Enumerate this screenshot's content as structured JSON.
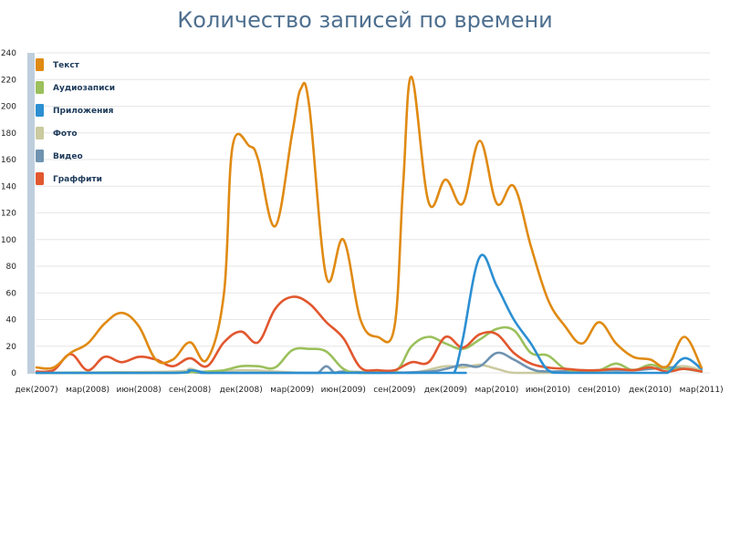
{
  "chart_data": {
    "type": "line",
    "title": "Количество записей по времени",
    "xlabel": "",
    "ylabel": "",
    "ylim": [
      0,
      240
    ],
    "y_ticks": [
      0,
      20,
      40,
      60,
      80,
      100,
      120,
      140,
      160,
      180,
      200,
      220,
      240
    ],
    "grid": true,
    "legend_position": "top-left",
    "x_tick_labels": [
      "дек(2007)",
      "мар(2008)",
      "июн(2008)",
      "сен(2008)",
      "дек(2008)",
      "мар(2009)",
      "июн(2009)",
      "сен(2009)",
      "дек(2009)",
      "мар(2010)",
      "июн(2010)",
      "сен(2010)",
      "дек(2010)",
      "мар(2011)"
    ],
    "x_tick_positions": [
      0,
      3,
      6,
      9,
      12,
      15,
      18,
      21,
      24,
      27,
      30,
      33,
      36,
      39
    ],
    "x_range": [
      0,
      39.5
    ],
    "series": [
      {
        "name": "Текст",
        "color": "#e08a12",
        "points": [
          [
            0,
            4
          ],
          [
            1,
            4
          ],
          [
            2,
            15
          ],
          [
            3,
            22
          ],
          [
            4,
            37
          ],
          [
            5,
            45
          ],
          [
            6,
            35
          ],
          [
            7,
            10
          ],
          [
            8,
            10
          ],
          [
            9,
            23
          ],
          [
            10,
            10
          ],
          [
            11,
            60
          ],
          [
            11.5,
            170
          ],
          [
            12.5,
            170
          ],
          [
            13,
            160
          ],
          [
            14,
            110
          ],
          [
            15,
            180
          ],
          [
            15.5,
            213
          ],
          [
            16,
            200
          ],
          [
            17,
            72
          ],
          [
            18,
            100
          ],
          [
            19,
            40
          ],
          [
            20,
            27
          ],
          [
            21,
            35
          ],
          [
            21.5,
            140
          ],
          [
            22,
            222
          ],
          [
            23,
            128
          ],
          [
            24,
            145
          ],
          [
            25,
            127
          ],
          [
            26,
            174
          ],
          [
            27,
            127
          ],
          [
            28,
            140
          ],
          [
            29,
            95
          ],
          [
            30,
            55
          ],
          [
            31,
            35
          ],
          [
            32,
            22
          ],
          [
            33,
            38
          ],
          [
            34,
            22
          ],
          [
            35,
            12
          ],
          [
            36,
            10
          ],
          [
            37,
            5
          ],
          [
            38,
            27
          ],
          [
            39,
            4
          ]
        ]
      },
      {
        "name": "Аудиозаписи",
        "color": "#9bc05c",
        "points": [
          [
            0,
            0
          ],
          [
            2,
            0
          ],
          [
            4,
            0
          ],
          [
            6,
            0
          ],
          [
            8,
            0
          ],
          [
            10,
            1
          ],
          [
            11,
            2
          ],
          [
            12,
            5
          ],
          [
            13,
            5
          ],
          [
            14,
            4
          ],
          [
            15,
            17
          ],
          [
            16,
            18
          ],
          [
            17,
            16
          ],
          [
            18,
            3
          ],
          [
            19,
            0
          ],
          [
            21,
            1
          ],
          [
            22,
            20
          ],
          [
            23,
            27
          ],
          [
            24,
            22
          ],
          [
            25,
            18
          ],
          [
            26,
            25
          ],
          [
            27,
            33
          ],
          [
            28,
            32
          ],
          [
            29,
            15
          ],
          [
            30,
            13
          ],
          [
            31,
            3
          ],
          [
            32,
            2
          ],
          [
            33,
            2
          ],
          [
            34,
            7
          ],
          [
            35,
            2
          ],
          [
            36,
            6
          ],
          [
            37,
            3
          ],
          [
            38,
            3
          ],
          [
            39,
            1
          ]
        ]
      },
      {
        "name": "Приложения",
        "color": "#2c8fd2",
        "points": [
          [
            0,
            0
          ],
          [
            8,
            0
          ],
          [
            9,
            2
          ],
          [
            10,
            0
          ],
          [
            11,
            0
          ],
          [
            24,
            0
          ],
          [
            24.5,
            0
          ],
          [
            25,
            25
          ],
          [
            26,
            87
          ],
          [
            27,
            65
          ],
          [
            28,
            40
          ],
          [
            29,
            22
          ],
          [
            30,
            2
          ],
          [
            31,
            0
          ],
          [
            36,
            0
          ],
          [
            37,
            0
          ],
          [
            38,
            11
          ],
          [
            39,
            3
          ]
        ]
      },
      {
        "name": "Фото",
        "color": "#cbcaa0",
        "points": [
          [
            0,
            0
          ],
          [
            8,
            1
          ],
          [
            9,
            3
          ],
          [
            10,
            0
          ],
          [
            12,
            2
          ],
          [
            14,
            1
          ],
          [
            16,
            0
          ],
          [
            20,
            1
          ],
          [
            22,
            0
          ],
          [
            24,
            5
          ],
          [
            25,
            4
          ],
          [
            26,
            6
          ],
          [
            27,
            3
          ],
          [
            28,
            0
          ],
          [
            30,
            0
          ],
          [
            33,
            1
          ],
          [
            36,
            3
          ],
          [
            37,
            4
          ],
          [
            38,
            5
          ],
          [
            39,
            2
          ]
        ]
      },
      {
        "name": "Видео",
        "color": "#6f93b0",
        "points": [
          [
            0,
            0
          ],
          [
            8,
            0
          ],
          [
            9,
            1
          ],
          [
            10,
            0
          ],
          [
            16,
            0
          ],
          [
            16.5,
            0
          ],
          [
            17,
            5
          ],
          [
            17.5,
            0
          ],
          [
            18,
            1
          ],
          [
            20,
            0
          ],
          [
            23,
            1
          ],
          [
            24,
            3
          ],
          [
            25,
            6
          ],
          [
            26,
            5
          ],
          [
            27,
            15
          ],
          [
            28,
            10
          ],
          [
            29,
            3
          ],
          [
            30,
            1
          ],
          [
            33,
            2
          ],
          [
            35,
            2
          ],
          [
            36,
            3
          ],
          [
            37,
            4
          ],
          [
            38,
            3
          ],
          [
            39,
            1
          ]
        ]
      },
      {
        "name": "Граффити",
        "color": "#e2572e",
        "points": [
          [
            0,
            1
          ],
          [
            1,
            2
          ],
          [
            2,
            14
          ],
          [
            3,
            2
          ],
          [
            4,
            12
          ],
          [
            5,
            8
          ],
          [
            6,
            12
          ],
          [
            7,
            10
          ],
          [
            8,
            5
          ],
          [
            9,
            11
          ],
          [
            10,
            5
          ],
          [
            11,
            23
          ],
          [
            12,
            31
          ],
          [
            13,
            23
          ],
          [
            14,
            48
          ],
          [
            15,
            57
          ],
          [
            16,
            52
          ],
          [
            17,
            38
          ],
          [
            18,
            26
          ],
          [
            19,
            4
          ],
          [
            20,
            2
          ],
          [
            21,
            2
          ],
          [
            22,
            8
          ],
          [
            23,
            8
          ],
          [
            24,
            27
          ],
          [
            25,
            19
          ],
          [
            26,
            29
          ],
          [
            27,
            29
          ],
          [
            28,
            15
          ],
          [
            29,
            7
          ],
          [
            30,
            4
          ],
          [
            31,
            3
          ],
          [
            32,
            2
          ],
          [
            33,
            2
          ],
          [
            34,
            3
          ],
          [
            35,
            2
          ],
          [
            36,
            4
          ],
          [
            37,
            1
          ],
          [
            38,
            3
          ],
          [
            39,
            1
          ]
        ]
      }
    ]
  }
}
